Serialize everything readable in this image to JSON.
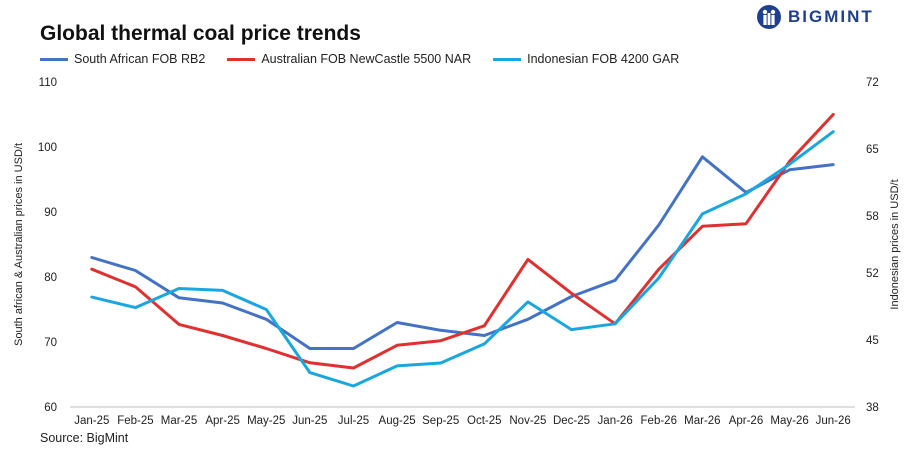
{
  "header": {
    "title": "Global thermal coal price trends",
    "brand": "BIGMINT"
  },
  "footer": {
    "source": "Source: BigMint"
  },
  "chart_data": {
    "type": "line",
    "title": "Global thermal coal price trends",
    "categories": [
      "Jan-25",
      "Feb-25",
      "Mar-25",
      "Apr-25",
      "May-25",
      "Jun-25",
      "Jul-25",
      "Aug-25",
      "Sep-25",
      "Oct-25",
      "Nov-25",
      "Dec-25",
      "Jan-26",
      "Feb-26",
      "Mar-26",
      "Apr-26",
      "May-26",
      "Jun-26"
    ],
    "ylabel_left": "South african & Australian prices in USD/t",
    "ylabel_right": "Indonesian prices in USD/t",
    "ylim_left": [
      60,
      110
    ],
    "yticks_left": [
      60,
      70,
      80,
      90,
      100,
      110
    ],
    "ylim_right": [
      38,
      72
    ],
    "yticks_right": [
      38,
      45,
      52,
      58,
      65,
      72
    ],
    "legend_position": "top",
    "grid": false,
    "series": [
      {
        "name": "South African FOB RB2",
        "axis": "left",
        "color": "#4472c4",
        "values": [
          83,
          81,
          76.8,
          76,
          73.5,
          69,
          69,
          73,
          71.8,
          71,
          73.5,
          77,
          79.5,
          88,
          98.5,
          93,
          96.5,
          97.3
        ]
      },
      {
        "name": "Australian FOB NewCastle 5500 NAR",
        "axis": "left",
        "color": "#e03030",
        "values": [
          81.2,
          78.5,
          72.7,
          71,
          69,
          66.8,
          66,
          69.5,
          70.2,
          72.5,
          82.7,
          77.5,
          72.8,
          81.2,
          87.8,
          88.2,
          97.8,
          105
        ]
      },
      {
        "name": "Indonesian FOB 4200 GAR",
        "axis": "right",
        "color": "#1aa7e0",
        "values": [
          49.5,
          48.4,
          50.4,
          50.2,
          48.2,
          41.6,
          40.2,
          42.3,
          42.6,
          44.6,
          49.0,
          46.1,
          46.7,
          51.5,
          58.2,
          60.3,
          63.4,
          66.8
        ]
      }
    ]
  }
}
